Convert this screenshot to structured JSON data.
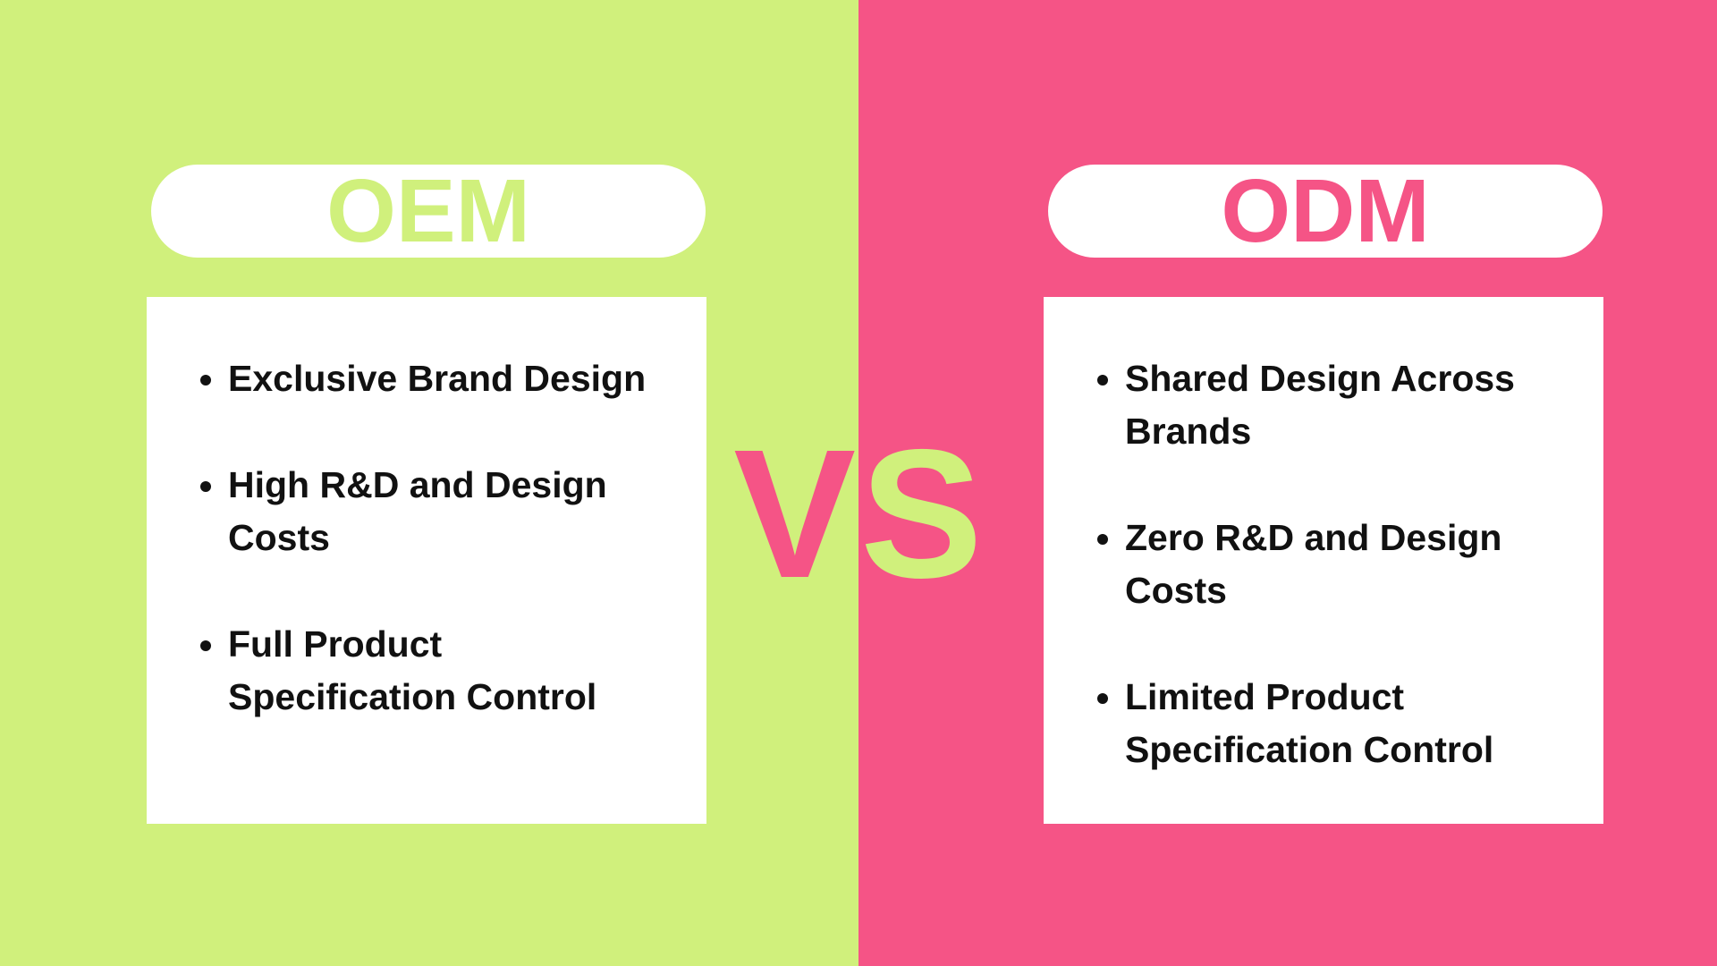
{
  "left": {
    "title": "OEM",
    "items": [
      "Exclusive Brand Design",
      "High R&D and Design Costs",
      "Full Product Specification Control"
    ]
  },
  "right": {
    "title": "ODM",
    "items": [
      "Shared Design Across Brands",
      "Zero R&D and Design Costs",
      "Limited Product Specification Control"
    ]
  },
  "vs": {
    "v": "V",
    "s": "S"
  }
}
